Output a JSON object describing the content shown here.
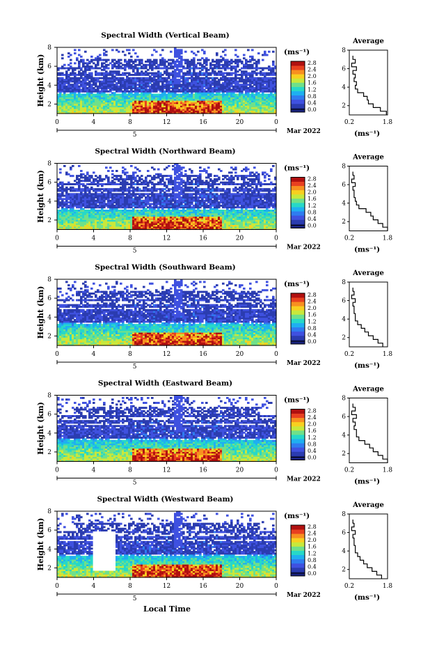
{
  "figure": {
    "x_axis_label": "Local Time",
    "date_label": "Mar 2022",
    "day_label": "5"
  },
  "colors": {
    "scale": [
      "#1a237e",
      "#2b3cb0",
      "#3f51e0",
      "#2f7cf0",
      "#1fb0f0",
      "#27d8c8",
      "#6fe08a",
      "#c8e83c",
      "#f8d020",
      "#f89020",
      "#e84020",
      "#b01010"
    ],
    "white": "#ffffff"
  },
  "chart_data": [
    {
      "type": "heatmap",
      "title": "Spectral Width (Vertical Beam)",
      "ylabel": "Height (km)",
      "xlabel": "",
      "x_ticks": [
        "0",
        "4",
        "8",
        "12",
        "16",
        "20",
        "0"
      ],
      "xlim": [
        0,
        24
      ],
      "y_ticks": [
        "2",
        "4",
        "6",
        "8"
      ],
      "ylim": [
        1,
        8
      ],
      "colorbar": {
        "unit": "(ms⁻¹)",
        "ticks": [
          "0.0",
          "0.4",
          "0.8",
          "1.2",
          "1.6",
          "2.0",
          "2.4",
          "2.8"
        ],
        "range": [
          0.0,
          2.8
        ]
      },
      "average": {
        "title": "Average",
        "xlabel": "(ms⁻¹)",
        "x_ticks": [
          "0.2",
          "1.8"
        ],
        "y_ticks": [
          "2",
          "4",
          "6",
          "8"
        ],
        "ylim": [
          1,
          8
        ],
        "height": [
          1.2,
          1.6,
          2.0,
          2.4,
          2.8,
          3.2,
          3.6,
          4.0,
          4.4,
          4.8,
          5.2,
          5.6,
          6.0,
          6.4,
          6.8,
          7.2
        ],
        "value": [
          1.75,
          1.5,
          1.2,
          1.0,
          0.95,
          0.8,
          0.55,
          0.45,
          0.5,
          0.4,
          0.45,
          0.35,
          0.5,
          0.3,
          0.45,
          0.35
        ]
      }
    },
    {
      "type": "heatmap",
      "title": "Spectral Width (Northward Beam)",
      "ylabel": "Height (km)",
      "xlabel": "",
      "x_ticks": [
        "0",
        "4",
        "8",
        "12",
        "16",
        "20",
        "0"
      ],
      "xlim": [
        0,
        24
      ],
      "y_ticks": [
        "2",
        "4",
        "6",
        "8"
      ],
      "ylim": [
        1,
        8
      ],
      "colorbar": {
        "unit": "(ms⁻¹)",
        "ticks": [
          "0.0",
          "0.4",
          "0.8",
          "1.2",
          "1.6",
          "2.0",
          "2.4",
          "2.8"
        ],
        "range": [
          0.0,
          2.8
        ]
      },
      "average": {
        "title": "Average",
        "xlabel": "(ms⁻¹)",
        "x_ticks": [
          "0.2",
          "1.8"
        ],
        "y_ticks": [
          "2",
          "4",
          "6",
          "8"
        ],
        "ylim": [
          1,
          8
        ],
        "height": [
          1.2,
          1.6,
          2.0,
          2.4,
          2.8,
          3.2,
          3.6,
          4.0,
          4.4,
          4.8,
          5.2,
          5.6,
          6.0,
          6.4,
          6.8,
          7.2
        ],
        "value": [
          1.8,
          1.6,
          1.4,
          1.2,
          1.1,
          0.9,
          0.6,
          0.5,
          0.45,
          0.4,
          0.4,
          0.35,
          0.45,
          0.3,
          0.4,
          0.35
        ]
      }
    },
    {
      "type": "heatmap",
      "title": "Spectral Width (Southward Beam)",
      "ylabel": "Height (km)",
      "xlabel": "",
      "x_ticks": [
        "0",
        "4",
        "8",
        "12",
        "16",
        "20",
        "0"
      ],
      "xlim": [
        0,
        24
      ],
      "y_ticks": [
        "2",
        "4",
        "6",
        "8"
      ],
      "ylim": [
        1,
        8
      ],
      "colorbar": {
        "unit": "(ms⁻¹)",
        "ticks": [
          "0.0",
          "0.4",
          "0.8",
          "1.2",
          "1.6",
          "2.0",
          "2.4",
          "2.8"
        ],
        "range": [
          0.0,
          2.8
        ]
      },
      "average": {
        "title": "Average",
        "xlabel": "(ms⁻¹)",
        "x_ticks": [
          "0.2",
          "1.8"
        ],
        "y_ticks": [
          "2",
          "4",
          "6",
          "8"
        ],
        "ylim": [
          1,
          8
        ],
        "height": [
          1.2,
          1.6,
          2.0,
          2.4,
          2.8,
          3.2,
          3.6,
          4.0,
          4.4,
          4.8,
          5.2,
          5.6,
          6.0,
          6.4,
          6.8,
          7.2
        ],
        "value": [
          1.6,
          1.4,
          1.2,
          1.0,
          0.85,
          0.7,
          0.55,
          0.45,
          0.45,
          0.4,
          0.4,
          0.35,
          0.45,
          0.3,
          0.4,
          0.35
        ]
      }
    },
    {
      "type": "heatmap",
      "title": "Spectral Width (Eastward Beam)",
      "ylabel": "Height (km)",
      "xlabel": "",
      "x_ticks": [
        "0",
        "4",
        "8",
        "12",
        "16",
        "20",
        "0"
      ],
      "xlim": [
        0,
        24
      ],
      "y_ticks": [
        "2",
        "4",
        "6",
        "8"
      ],
      "ylim": [
        1,
        8
      ],
      "colorbar": {
        "unit": "(ms⁻¹)",
        "ticks": [
          "0.0",
          "0.4",
          "0.8",
          "1.2",
          "1.6",
          "2.0",
          "2.4",
          "2.8"
        ],
        "range": [
          0.0,
          2.8
        ]
      },
      "average": {
        "title": "Average",
        "xlabel": "(ms⁻¹)",
        "x_ticks": [
          "0.2",
          "1.8"
        ],
        "y_ticks": [
          "2",
          "4",
          "6",
          "8"
        ],
        "ylim": [
          1,
          8
        ],
        "height": [
          1.2,
          1.6,
          2.0,
          2.4,
          2.8,
          3.2,
          3.6,
          4.0,
          4.4,
          4.8,
          5.2,
          5.6,
          6.0,
          6.4,
          6.8,
          7.2
        ],
        "value": [
          1.8,
          1.6,
          1.4,
          1.2,
          1.05,
          0.85,
          0.6,
          0.5,
          0.5,
          0.4,
          0.45,
          0.35,
          0.5,
          0.3,
          0.45,
          0.35
        ]
      }
    },
    {
      "type": "heatmap",
      "title": "Spectral Width (Westward Beam)",
      "ylabel": "Height (km)",
      "xlabel": "Local Time",
      "x_ticks": [
        "0",
        "4",
        "8",
        "12",
        "16",
        "20",
        "0"
      ],
      "xlim": [
        0,
        24
      ],
      "y_ticks": [
        "2",
        "4",
        "6",
        "8"
      ],
      "ylim": [
        1,
        8
      ],
      "colorbar": {
        "unit": "(ms⁻¹)",
        "ticks": [
          "0.0",
          "0.4",
          "0.8",
          "1.2",
          "1.6",
          "2.0",
          "2.4",
          "2.8"
        ],
        "range": [
          0.0,
          2.8
        ]
      },
      "average": {
        "title": "Average",
        "xlabel": "(ms⁻¹)",
        "x_ticks": [
          "0.2",
          "1.8"
        ],
        "y_ticks": [
          "2",
          "4",
          "6",
          "8"
        ],
        "ylim": [
          1,
          8
        ],
        "height": [
          1.2,
          1.6,
          2.0,
          2.4,
          2.8,
          3.2,
          3.6,
          4.0,
          4.4,
          4.8,
          5.2,
          5.6,
          6.0,
          6.4,
          6.8,
          7.2
        ],
        "value": [
          1.55,
          1.35,
          1.15,
          0.95,
          0.8,
          0.65,
          0.55,
          0.45,
          0.45,
          0.4,
          0.4,
          0.35,
          0.45,
          0.3,
          0.4,
          0.35
        ]
      }
    }
  ]
}
